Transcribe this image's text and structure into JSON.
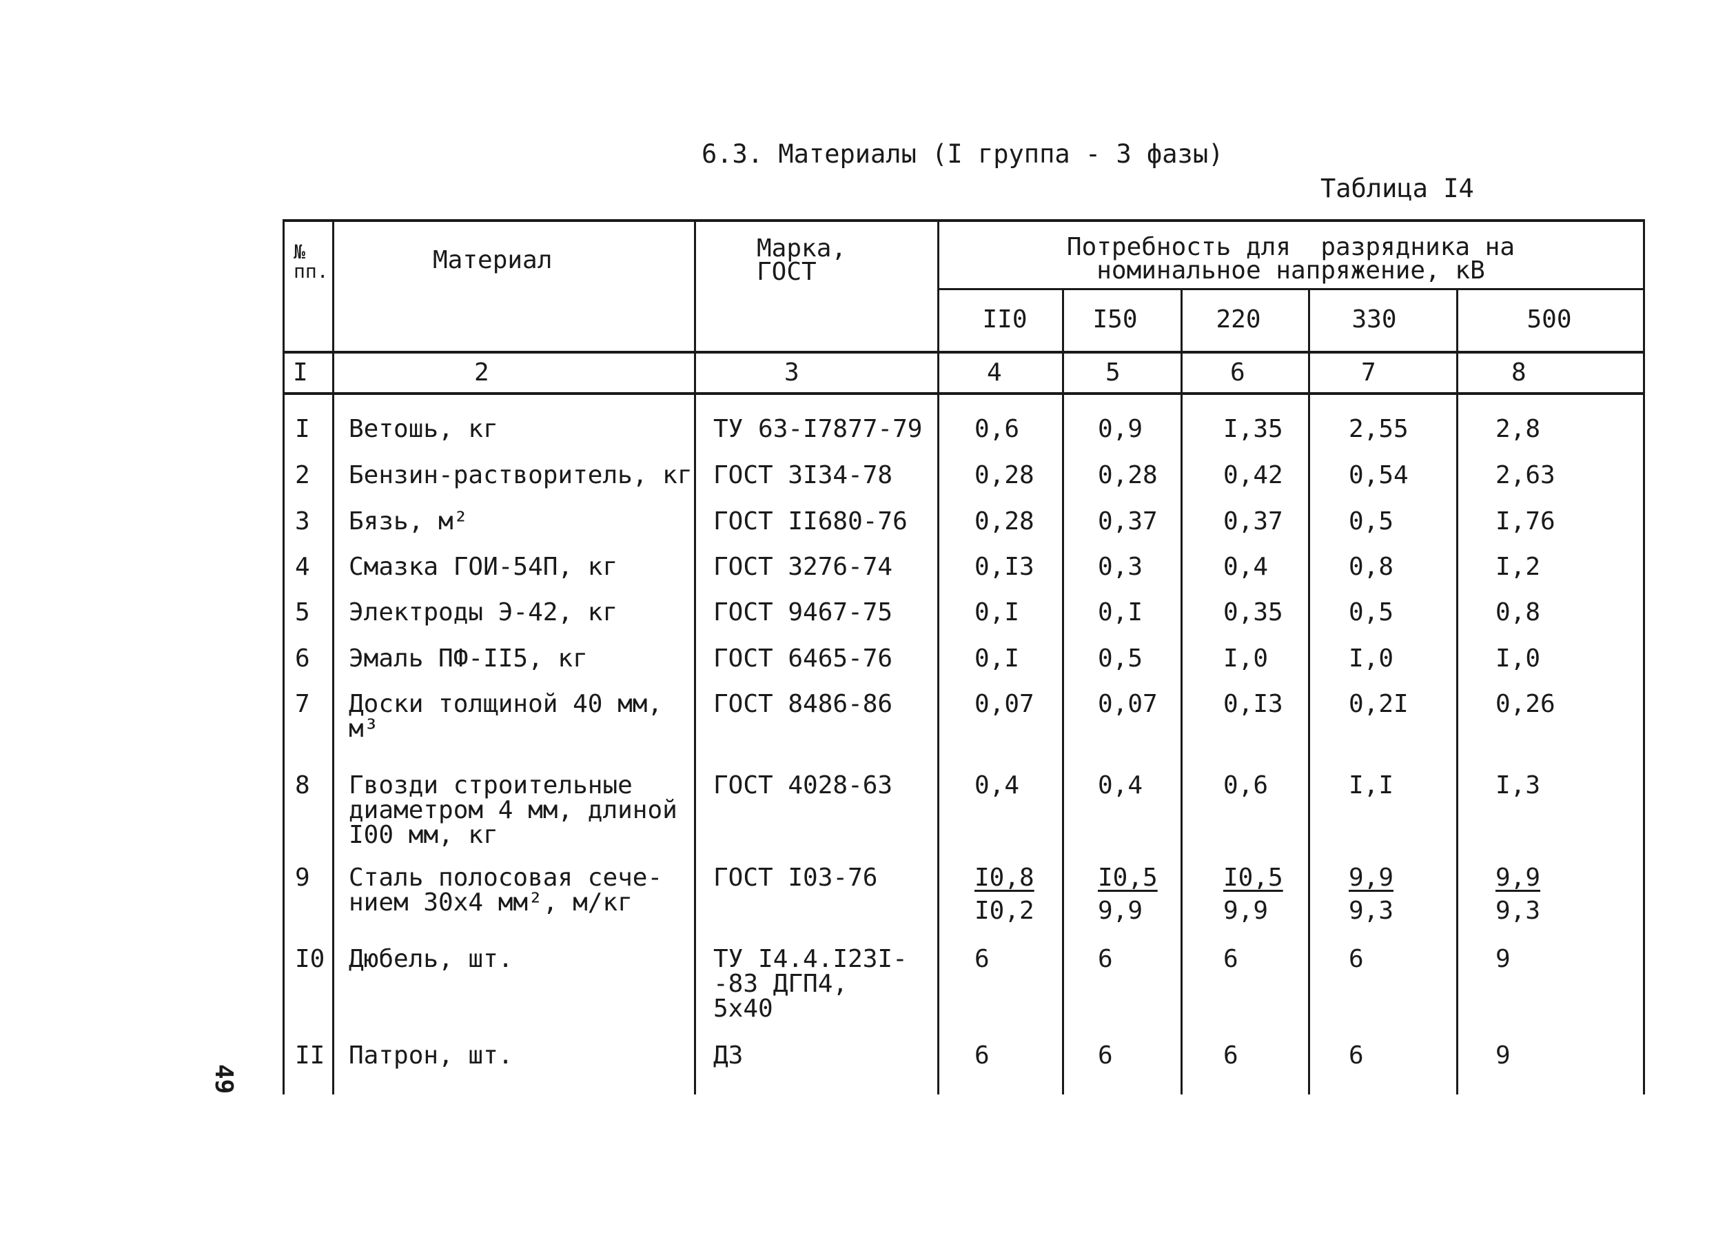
{
  "document": {
    "title": "6.3. Материалы (I группа - 3 фазы)",
    "table_label": "Таблица I4",
    "page_number": "49"
  },
  "table": {
    "headers": {
      "num": "№\nпп.",
      "material": "Материал",
      "brand": "Марка,\nГОСТ",
      "demand": "Потребность для  разрядника на\nноминальное напряжение, кВ",
      "voltages": [
        "II0",
        "I50",
        "220",
        "330",
        "500"
      ]
    },
    "column_numbers": [
      "I",
      "2",
      "3",
      "4",
      "5",
      "6",
      "7",
      "8"
    ],
    "rows": [
      {
        "num": "I",
        "material": "Ветошь, кг",
        "brand": "ТУ 63-I7877-79",
        "values": [
          "0,6",
          "0,9",
          "I,35",
          "2,55",
          "2,8"
        ]
      },
      {
        "num": "2",
        "material": "Бензин-растворитель, кг",
        "brand": "ГОСТ 3I34-78",
        "values": [
          "0,28",
          "0,28",
          "0,42",
          "0,54",
          "2,63"
        ]
      },
      {
        "num": "3",
        "material": "Бязь, м²",
        "brand": "ГОСТ II680-76",
        "values": [
          "0,28",
          "0,37",
          "0,37",
          "0,5",
          "I,76"
        ]
      },
      {
        "num": "4",
        "material": "Смазка ГОИ-54П, кг",
        "brand": "ГОСТ 3276-74",
        "values": [
          "0,I3",
          "0,3",
          "0,4",
          "0,8",
          "I,2"
        ]
      },
      {
        "num": "5",
        "material": "Электроды Э-42, кг",
        "brand": "ГОСТ 9467-75",
        "values": [
          "0,I",
          "0,I",
          "0,35",
          "0,5",
          "0,8"
        ]
      },
      {
        "num": "6",
        "material": "Эмаль ПФ-II5, кг",
        "brand": "ГОСТ 6465-76",
        "values": [
          "0,I",
          "0,5",
          "I,0",
          "I,0",
          "I,0"
        ]
      },
      {
        "num": "7",
        "material": "Доски толщиной 40 мм,\nм³",
        "brand": "ГОСТ 8486-86",
        "values": [
          "0,07",
          "0,07",
          "0,I3",
          "0,2I",
          "0,26"
        ]
      },
      {
        "num": "8",
        "material": "Гвозди строительные\nдиаметром 4 мм, длиной\nI00 мм, кг",
        "brand": "ГОСТ 4028-63",
        "values": [
          "0,4",
          "0,4",
          "0,6",
          "I,I",
          "I,3"
        ]
      },
      {
        "num": "9",
        "material": "Сталь полосовая сече-\nнием 30х4 мм², м/кг",
        "brand": "ГОСТ I03-76",
        "values": [
          "I0,8",
          "I0,5",
          "I0,5",
          "9,9",
          "9,9"
        ],
        "values_lower": [
          "I0,2",
          "9,9",
          "9,9",
          "9,3",
          "9,3"
        ]
      },
      {
        "num": "I0",
        "material": "Дюбель, шт.",
        "brand": "ТУ I4.4.I23I-\n-83 ДГП4,\n5х40",
        "values": [
          "6",
          "6",
          "6",
          "6",
          "9"
        ]
      },
      {
        "num": "II",
        "material": "Патрон, шт.",
        "brand": "Д3",
        "values": [
          "6",
          "6",
          "6",
          "6",
          "9"
        ]
      }
    ]
  }
}
